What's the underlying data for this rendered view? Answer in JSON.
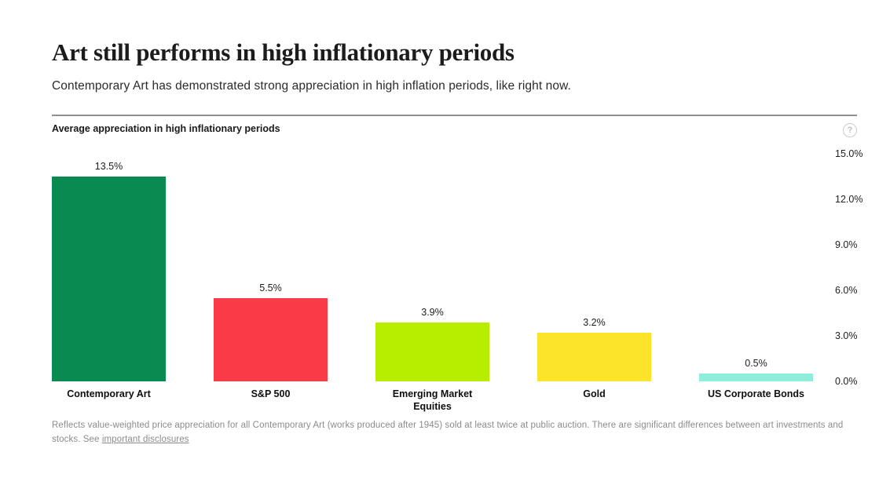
{
  "page": {
    "title": "Art still performs in high inflationary periods",
    "subtitle": "Contemporary Art has demonstrated strong appreciation in high inflation periods, like right now."
  },
  "chart": {
    "header": "Average appreciation in high inflationary periods",
    "help_icon": "question-mark-circle-icon"
  },
  "chart_data": {
    "type": "bar",
    "title": "Average appreciation in high inflationary periods",
    "categories": [
      "Contemporary Art",
      "S&P 500",
      "Emerging Market Equities",
      "Gold",
      "US Corporate Bonds"
    ],
    "values": [
      13.5,
      5.5,
      3.9,
      3.2,
      0.5
    ],
    "value_labels": [
      "13.5%",
      "5.5%",
      "3.9%",
      "3.2%",
      "0.5%"
    ],
    "bar_colors": [
      "#088A50",
      "#FB3A48",
      "#B7EE00",
      "#FBE42A",
      "#8FEEDA"
    ],
    "xlabel": "",
    "ylabel": "",
    "ylim": [
      0,
      15
    ],
    "yticks": {
      "labels": [
        "15.0%",
        "12.0%",
        "9.0%",
        "6.0%",
        "3.0%",
        "0.0%"
      ],
      "values": [
        15,
        12,
        9,
        6,
        3,
        0
      ]
    },
    "grid": false,
    "legend": "none",
    "tick_side": "right"
  },
  "footnote": {
    "text": "Reflects value-weighted price appreciation for all Contemporary Art (works produced after 1945) sold at least twice at public auction. There are significant differences between art investments and stocks. See",
    "link_label": "important disclosures"
  }
}
